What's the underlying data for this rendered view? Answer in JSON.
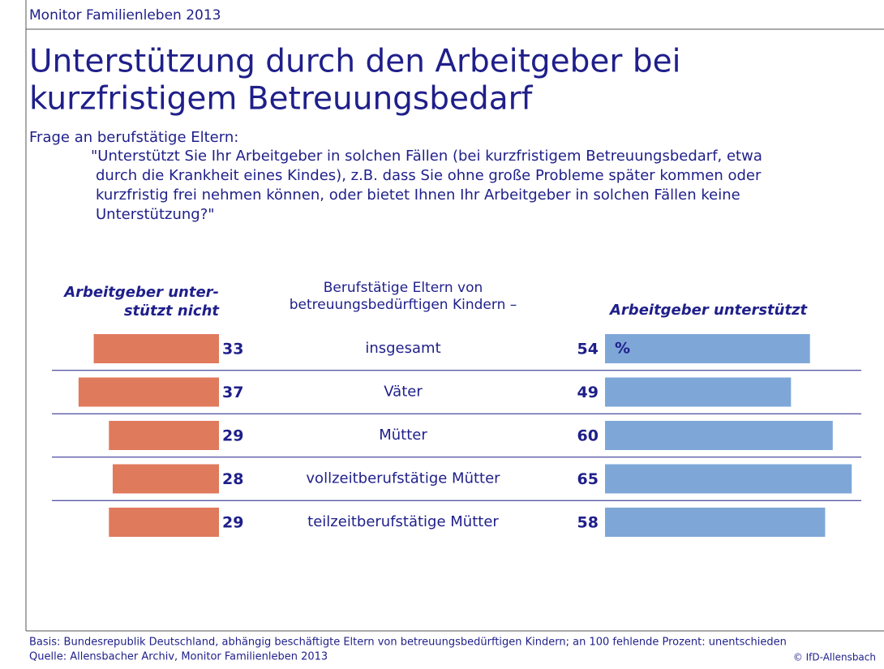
{
  "chart_data": {
    "type": "diverging_bar",
    "header": "Monitor Familienleben 2013",
    "title": [
      "Unterstützung durch den Arbeitgeber bei",
      "kurzfristigem Betreuungsbedarf"
    ],
    "question_intro": "Frage an berufstätige Eltern:",
    "question": [
      "\"Unterstützt Sie Ihr Arbeitgeber in solchen Fällen (bei kurzfristigem Betreuungsbedarf, etwa",
      "durch die Krankheit eines Kindes), z.B. dass Sie ohne große Probleme später kommen oder",
      "kurzfristig frei nehmen können, oder bietet Ihnen Ihr Arbeitgeber in solchen Fällen keine",
      "Unterstützung?\""
    ],
    "category_header": [
      "Berufstätige Eltern von",
      "betreuungsbedürftigen Kindern –"
    ],
    "categories": [
      "insgesamt",
      "Väter",
      "Mütter",
      "vollzeitberufstätige Mütter",
      "teilzeitberufstätige Mütter"
    ],
    "unit": "%",
    "series": [
      {
        "name": [
          "Arbeitgeber unter-",
          "stützt nicht"
        ],
        "color": "#e07a5c",
        "values": [
          33,
          37,
          29,
          28,
          29
        ]
      },
      {
        "name": [
          "Arbeitgeber unterstützt"
        ],
        "color": "#7ea7d8",
        "values": [
          54,
          49,
          60,
          65,
          58
        ]
      }
    ],
    "footnotes": [
      "Basis: Bundesrepublik Deutschland, abhängig beschäftigte Eltern von betreuungsbedürftigen Kindern; an 100 fehlende Prozent: unentschieden",
      "Quelle: Allensbacher Archiv, Monitor Familienleben 2013"
    ],
    "credit": "© IfD-Allensbach"
  }
}
